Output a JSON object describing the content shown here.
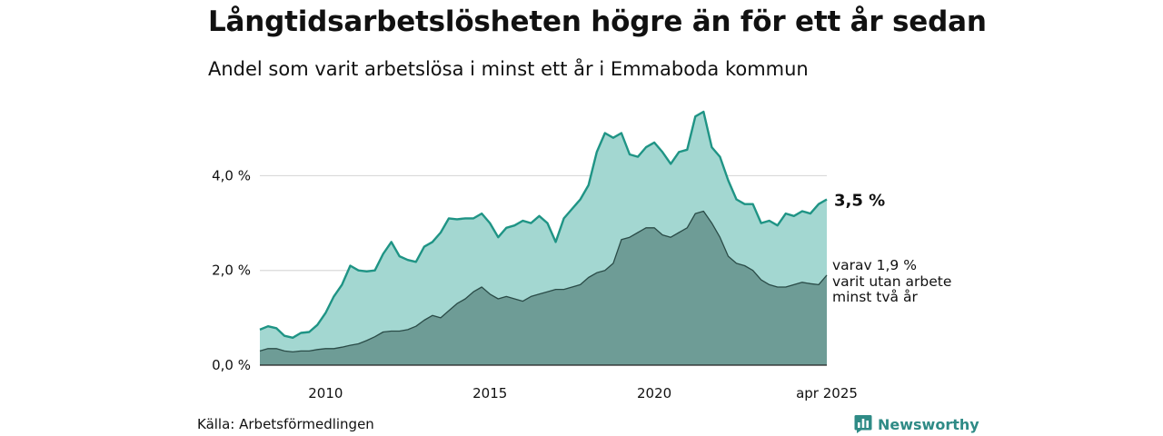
{
  "chart_data": {
    "type": "area",
    "title": "Långtidsarbetslösheten högre än för ett år sedan",
    "subtitle": "Andel som varit arbetslösa i minst ett år i Emmaboda kommun",
    "x_range": [
      "2008-01",
      "2025-04"
    ],
    "ylim": [
      0,
      5.6
    ],
    "y_ticks": [
      {
        "value": 0,
        "label": "0,0 %"
      },
      {
        "value": 2,
        "label": "2,0 %"
      },
      {
        "value": 4,
        "label": "4,0 %"
      }
    ],
    "x_ticks": [
      {
        "value": "2010-01",
        "label": "2010"
      },
      {
        "value": "2015-01",
        "label": "2015"
      },
      {
        "value": "2020-01",
        "label": "2020"
      },
      {
        "value": "2025-04",
        "label": "apr 2025"
      }
    ],
    "grid": true,
    "end_label": "3,5 %",
    "annotation": [
      "varav 1,9 %",
      "varit utan arbete",
      "minst två år"
    ],
    "series": [
      {
        "key": "minst_ett_ar",
        "color": "#1f9485",
        "fill": "#a3d7d1",
        "points": [
          [
            "2008-01",
            0.75
          ],
          [
            "2008-04",
            0.82
          ],
          [
            "2008-07",
            0.78
          ],
          [
            "2008-10",
            0.62
          ],
          [
            "2009-01",
            0.58
          ],
          [
            "2009-04",
            0.68
          ],
          [
            "2009-07",
            0.7
          ],
          [
            "2009-10",
            0.85
          ],
          [
            "2010-01",
            1.1
          ],
          [
            "2010-04",
            1.45
          ],
          [
            "2010-07",
            1.7
          ],
          [
            "2010-10",
            2.1
          ],
          [
            "2011-01",
            2.0
          ],
          [
            "2011-04",
            1.98
          ],
          [
            "2011-07",
            2.0
          ],
          [
            "2011-10",
            2.35
          ],
          [
            "2012-01",
            2.6
          ],
          [
            "2012-04",
            2.3
          ],
          [
            "2012-07",
            2.22
          ],
          [
            "2012-10",
            2.18
          ],
          [
            "2013-01",
            2.5
          ],
          [
            "2013-04",
            2.6
          ],
          [
            "2013-07",
            2.8
          ],
          [
            "2013-10",
            3.1
          ],
          [
            "2014-01",
            3.08
          ],
          [
            "2014-04",
            3.1
          ],
          [
            "2014-07",
            3.1
          ],
          [
            "2014-10",
            3.2
          ],
          [
            "2015-01",
            3.0
          ],
          [
            "2015-04",
            2.7
          ],
          [
            "2015-07",
            2.9
          ],
          [
            "2015-10",
            2.95
          ],
          [
            "2016-01",
            3.05
          ],
          [
            "2016-04",
            3.0
          ],
          [
            "2016-07",
            3.15
          ],
          [
            "2016-10",
            3.0
          ],
          [
            "2017-01",
            2.6
          ],
          [
            "2017-04",
            3.1
          ],
          [
            "2017-07",
            3.3
          ],
          [
            "2017-10",
            3.5
          ],
          [
            "2018-01",
            3.8
          ],
          [
            "2018-04",
            4.5
          ],
          [
            "2018-07",
            4.9
          ],
          [
            "2018-10",
            4.8
          ],
          [
            "2019-01",
            4.9
          ],
          [
            "2019-04",
            4.45
          ],
          [
            "2019-07",
            4.4
          ],
          [
            "2019-10",
            4.6
          ],
          [
            "2020-01",
            4.7
          ],
          [
            "2020-04",
            4.5
          ],
          [
            "2020-07",
            4.25
          ],
          [
            "2020-10",
            4.5
          ],
          [
            "2021-01",
            4.55
          ],
          [
            "2021-04",
            5.25
          ],
          [
            "2021-07",
            5.35
          ],
          [
            "2021-10",
            4.6
          ],
          [
            "2022-01",
            4.4
          ],
          [
            "2022-04",
            3.9
          ],
          [
            "2022-07",
            3.5
          ],
          [
            "2022-10",
            3.4
          ],
          [
            "2023-01",
            3.4
          ],
          [
            "2023-04",
            3.0
          ],
          [
            "2023-07",
            3.05
          ],
          [
            "2023-10",
            2.95
          ],
          [
            "2024-01",
            3.2
          ],
          [
            "2024-04",
            3.15
          ],
          [
            "2024-07",
            3.25
          ],
          [
            "2024-10",
            3.2
          ],
          [
            "2025-01",
            3.4
          ],
          [
            "2025-04",
            3.5
          ]
        ]
      },
      {
        "key": "minst_tva_ar",
        "color": "#2a4b47",
        "fill": "#6e9c96",
        "points": [
          [
            "2008-01",
            0.3
          ],
          [
            "2008-04",
            0.35
          ],
          [
            "2008-07",
            0.35
          ],
          [
            "2008-10",
            0.3
          ],
          [
            "2009-01",
            0.28
          ],
          [
            "2009-04",
            0.3
          ],
          [
            "2009-07",
            0.3
          ],
          [
            "2009-10",
            0.33
          ],
          [
            "2010-01",
            0.35
          ],
          [
            "2010-04",
            0.35
          ],
          [
            "2010-07",
            0.38
          ],
          [
            "2010-10",
            0.42
          ],
          [
            "2011-01",
            0.45
          ],
          [
            "2011-04",
            0.52
          ],
          [
            "2011-07",
            0.6
          ],
          [
            "2011-10",
            0.7
          ],
          [
            "2012-01",
            0.72
          ],
          [
            "2012-04",
            0.72
          ],
          [
            "2012-07",
            0.75
          ],
          [
            "2012-10",
            0.82
          ],
          [
            "2013-01",
            0.95
          ],
          [
            "2013-04",
            1.05
          ],
          [
            "2013-07",
            1.0
          ],
          [
            "2013-10",
            1.15
          ],
          [
            "2014-01",
            1.3
          ],
          [
            "2014-04",
            1.4
          ],
          [
            "2014-07",
            1.55
          ],
          [
            "2014-10",
            1.65
          ],
          [
            "2015-01",
            1.5
          ],
          [
            "2015-04",
            1.4
          ],
          [
            "2015-07",
            1.45
          ],
          [
            "2015-10",
            1.4
          ],
          [
            "2016-01",
            1.35
          ],
          [
            "2016-04",
            1.45
          ],
          [
            "2016-07",
            1.5
          ],
          [
            "2016-10",
            1.55
          ],
          [
            "2017-01",
            1.6
          ],
          [
            "2017-04",
            1.6
          ],
          [
            "2017-07",
            1.65
          ],
          [
            "2017-10",
            1.7
          ],
          [
            "2018-01",
            1.85
          ],
          [
            "2018-04",
            1.95
          ],
          [
            "2018-07",
            2.0
          ],
          [
            "2018-10",
            2.15
          ],
          [
            "2019-01",
            2.65
          ],
          [
            "2019-04",
            2.7
          ],
          [
            "2019-07",
            2.8
          ],
          [
            "2019-10",
            2.9
          ],
          [
            "2020-01",
            2.9
          ],
          [
            "2020-04",
            2.75
          ],
          [
            "2020-07",
            2.7
          ],
          [
            "2020-10",
            2.8
          ],
          [
            "2021-01",
            2.9
          ],
          [
            "2021-04",
            3.2
          ],
          [
            "2021-07",
            3.25
          ],
          [
            "2021-10",
            3.0
          ],
          [
            "2022-01",
            2.7
          ],
          [
            "2022-04",
            2.3
          ],
          [
            "2022-07",
            2.15
          ],
          [
            "2022-10",
            2.1
          ],
          [
            "2023-01",
            2.0
          ],
          [
            "2023-04",
            1.8
          ],
          [
            "2023-07",
            1.7
          ],
          [
            "2023-10",
            1.65
          ],
          [
            "2024-01",
            1.65
          ],
          [
            "2024-04",
            1.7
          ],
          [
            "2024-07",
            1.75
          ],
          [
            "2024-10",
            1.72
          ],
          [
            "2025-01",
            1.7
          ],
          [
            "2025-04",
            1.9
          ]
        ]
      }
    ]
  },
  "footer": {
    "source": "Källa: Arbetsförmedlingen",
    "logo_text": "Newsworthy",
    "logo_icon": "newsworthy-bar-icon",
    "logo_color": "#2f8b86"
  }
}
